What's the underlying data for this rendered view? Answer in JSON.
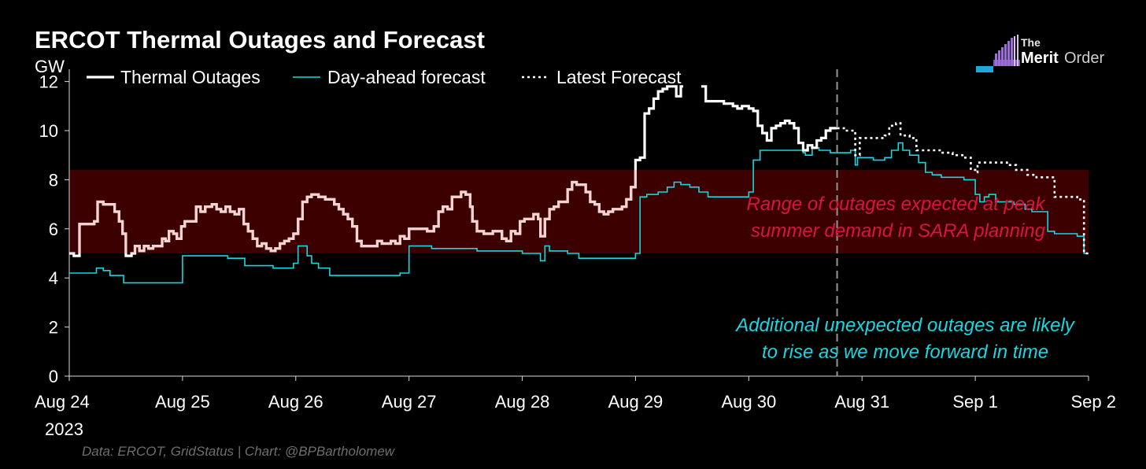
{
  "header": {
    "title": "ERCOT Thermal Outages and Forecast",
    "unit": "GW"
  },
  "logo": {
    "the": "The",
    "merit": "Merit",
    "order": "Order"
  },
  "footer": {
    "source": "Data: ERCOT, GridStatus | Chart: @BPBartholomew"
  },
  "colors": {
    "outages": "#ffffff",
    "band_outages": "#f6d3d3",
    "dayahead": "#19d6df",
    "band": "#3d0000",
    "band_text": "#d7153f",
    "note_text": "#19d6df",
    "vline": "#8a8a8a",
    "axis": "#d9d9d9"
  },
  "chart_data": {
    "type": "line",
    "title": "ERCOT Thermal Outages and Forecast",
    "xlabel": "",
    "ylabel": "GW",
    "xlim": [
      0,
      9
    ],
    "ylim": [
      0,
      12.5
    ],
    "x_ticks": [
      0,
      1,
      2,
      3,
      4,
      5,
      6,
      7,
      8,
      9
    ],
    "x_tick_labels": [
      "Aug 24",
      "Aug 25",
      "Aug 26",
      "Aug 27",
      "Aug 28",
      "Aug 29",
      "Aug 30",
      "Aug 31",
      "Sep 1",
      "Sep 2"
    ],
    "x_year_label": "2023",
    "y_ticks": [
      0,
      2,
      4,
      6,
      8,
      10,
      12
    ],
    "y_tick_labels": [
      "0",
      "2",
      "4",
      "6",
      "8",
      "10",
      "12"
    ],
    "legend": {
      "position": "top-left",
      "entries": [
        "Thermal Outages",
        "Day-ahead forecast",
        "Latest Forecast"
      ]
    },
    "shaded_range": {
      "y_min": 5.0,
      "y_max": 8.4,
      "label_line1": "Range of outages expected at peak",
      "label_line2": "summer demand in SARA planning"
    },
    "vertical_marker": {
      "x": 6.78,
      "style": "dashed"
    },
    "annotation": {
      "line1": "Additional unexpected outages are likely",
      "line2": "to rise as we move forward in time"
    },
    "series": [
      {
        "name": "Thermal Outages",
        "style": "step-solid",
        "points": [
          [
            0.0,
            5.0
          ],
          [
            0.04,
            4.9
          ],
          [
            0.09,
            6.2
          ],
          [
            0.17,
            6.2
          ],
          [
            0.22,
            6.3
          ],
          [
            0.25,
            7.1
          ],
          [
            0.3,
            7.0
          ],
          [
            0.36,
            7.0
          ],
          [
            0.4,
            6.7
          ],
          [
            0.44,
            6.3
          ],
          [
            0.47,
            5.8
          ],
          [
            0.5,
            4.9
          ],
          [
            0.55,
            5.0
          ],
          [
            0.58,
            5.3
          ],
          [
            0.62,
            5.1
          ],
          [
            0.66,
            5.3
          ],
          [
            0.7,
            5.2
          ],
          [
            0.74,
            5.3
          ],
          [
            0.78,
            5.3
          ],
          [
            0.82,
            5.6
          ],
          [
            0.85,
            5.5
          ],
          [
            0.88,
            5.9
          ],
          [
            0.92,
            5.8
          ],
          [
            0.95,
            5.6
          ],
          [
            0.99,
            6.1
          ],
          [
            1.02,
            6.3
          ],
          [
            1.08,
            6.3
          ],
          [
            1.12,
            6.9
          ],
          [
            1.16,
            6.7
          ],
          [
            1.2,
            6.9
          ],
          [
            1.26,
            7.0
          ],
          [
            1.3,
            6.8
          ],
          [
            1.34,
            6.7
          ],
          [
            1.38,
            6.9
          ],
          [
            1.42,
            6.7
          ],
          [
            1.46,
            6.6
          ],
          [
            1.5,
            6.8
          ],
          [
            1.54,
            6.2
          ],
          [
            1.58,
            5.9
          ],
          [
            1.62,
            5.6
          ],
          [
            1.66,
            5.3
          ],
          [
            1.7,
            5.4
          ],
          [
            1.74,
            5.2
          ],
          [
            1.78,
            5.1
          ],
          [
            1.82,
            5.2
          ],
          [
            1.86,
            5.4
          ],
          [
            1.9,
            5.5
          ],
          [
            1.94,
            5.6
          ],
          [
            1.98,
            5.8
          ],
          [
            2.02,
            6.4
          ],
          [
            2.06,
            7.1
          ],
          [
            2.1,
            7.3
          ],
          [
            2.14,
            7.4
          ],
          [
            2.2,
            7.3
          ],
          [
            2.26,
            7.2
          ],
          [
            2.3,
            7.2
          ],
          [
            2.34,
            7.0
          ],
          [
            2.38,
            6.8
          ],
          [
            2.42,
            6.6
          ],
          [
            2.46,
            6.4
          ],
          [
            2.5,
            6.1
          ],
          [
            2.54,
            5.5
          ],
          [
            2.58,
            5.3
          ],
          [
            2.64,
            5.3
          ],
          [
            2.68,
            5.3
          ],
          [
            2.72,
            5.5
          ],
          [
            2.76,
            5.4
          ],
          [
            2.8,
            5.4
          ],
          [
            2.84,
            5.5
          ],
          [
            2.88,
            5.4
          ],
          [
            2.92,
            5.7
          ],
          [
            2.96,
            5.6
          ],
          [
            3.0,
            6.0
          ],
          [
            3.04,
            6.0
          ],
          [
            3.1,
            6.0
          ],
          [
            3.16,
            5.9
          ],
          [
            3.22,
            6.1
          ],
          [
            3.26,
            6.7
          ],
          [
            3.3,
            6.9
          ],
          [
            3.34,
            6.8
          ],
          [
            3.38,
            7.3
          ],
          [
            3.42,
            7.3
          ],
          [
            3.46,
            7.5
          ],
          [
            3.5,
            7.4
          ],
          [
            3.54,
            6.9
          ],
          [
            3.56,
            6.3
          ],
          [
            3.6,
            5.9
          ],
          [
            3.66,
            5.8
          ],
          [
            3.7,
            5.8
          ],
          [
            3.74,
            5.9
          ],
          [
            3.78,
            5.9
          ],
          [
            3.82,
            5.6
          ],
          [
            3.86,
            5.5
          ],
          [
            3.9,
            5.9
          ],
          [
            3.94,
            5.8
          ],
          [
            3.98,
            6.3
          ],
          [
            4.02,
            6.4
          ],
          [
            4.06,
            6.4
          ],
          [
            4.1,
            6.6
          ],
          [
            4.14,
            6.4
          ],
          [
            4.16,
            5.7
          ],
          [
            4.2,
            6.4
          ],
          [
            4.24,
            6.8
          ],
          [
            4.28,
            6.9
          ],
          [
            4.32,
            7.1
          ],
          [
            4.36,
            7.1
          ],
          [
            4.4,
            7.6
          ],
          [
            4.44,
            7.9
          ],
          [
            4.48,
            7.8
          ],
          [
            4.52,
            7.8
          ],
          [
            4.56,
            7.5
          ],
          [
            4.6,
            7.1
          ],
          [
            4.64,
            7.0
          ],
          [
            4.68,
            6.7
          ],
          [
            4.72,
            6.6
          ],
          [
            4.76,
            6.7
          ],
          [
            4.8,
            6.8
          ],
          [
            4.84,
            6.8
          ],
          [
            4.88,
            6.9
          ],
          [
            4.92,
            7.2
          ],
          [
            4.96,
            7.7
          ],
          [
            5.0,
            8.8
          ],
          [
            5.04,
            8.9
          ],
          [
            5.08,
            10.7
          ],
          [
            5.12,
            10.9
          ],
          [
            5.16,
            11.3
          ],
          [
            5.2,
            11.6
          ],
          [
            5.24,
            11.7
          ],
          [
            5.28,
            11.8
          ],
          [
            5.32,
            11.8
          ],
          [
            5.36,
            11.4
          ],
          [
            5.4,
            11.8
          ],
          [
            5.42,
            11.8
          ]
        ]
      },
      {
        "name": "Thermal Outages (cont.)",
        "style": "step-solid",
        "points": [
          [
            5.58,
            11.8
          ],
          [
            5.62,
            11.2
          ],
          [
            5.68,
            11.2
          ],
          [
            5.74,
            11.2
          ],
          [
            5.78,
            11.1
          ],
          [
            5.82,
            11.1
          ],
          [
            5.86,
            11.0
          ],
          [
            5.9,
            10.9
          ],
          [
            5.94,
            11.0
          ],
          [
            6.0,
            10.9
          ],
          [
            6.04,
            10.8
          ],
          [
            6.08,
            10.2
          ],
          [
            6.12,
            9.9
          ],
          [
            6.16,
            9.6
          ],
          [
            6.2,
            10.1
          ],
          [
            6.24,
            10.2
          ],
          [
            6.28,
            10.3
          ],
          [
            6.32,
            10.4
          ],
          [
            6.36,
            10.3
          ],
          [
            6.4,
            10.1
          ],
          [
            6.44,
            9.5
          ],
          [
            6.48,
            9.2
          ],
          [
            6.52,
            9.4
          ],
          [
            6.56,
            9.3
          ],
          [
            6.6,
            9.6
          ],
          [
            6.64,
            9.7
          ],
          [
            6.68,
            10.0
          ],
          [
            6.72,
            10.1
          ],
          [
            6.78,
            10.1
          ]
        ]
      },
      {
        "name": "Day-ahead forecast",
        "style": "step-solid",
        "points": [
          [
            0.0,
            4.2
          ],
          [
            0.2,
            4.2
          ],
          [
            0.24,
            4.4
          ],
          [
            0.3,
            4.3
          ],
          [
            0.36,
            4.1
          ],
          [
            0.4,
            4.1
          ],
          [
            0.48,
            3.8
          ],
          [
            0.6,
            3.8
          ],
          [
            0.8,
            3.8
          ],
          [
            1.0,
            4.9
          ],
          [
            1.2,
            4.9
          ],
          [
            1.4,
            4.8
          ],
          [
            1.55,
            4.5
          ],
          [
            1.8,
            4.4
          ],
          [
            1.98,
            4.6
          ],
          [
            2.02,
            5.3
          ],
          [
            2.06,
            5.3
          ],
          [
            2.1,
            4.9
          ],
          [
            2.14,
            4.6
          ],
          [
            2.2,
            4.4
          ],
          [
            2.3,
            4.1
          ],
          [
            2.4,
            4.1
          ],
          [
            2.6,
            4.1
          ],
          [
            2.7,
            4.1
          ],
          [
            2.8,
            4.1
          ],
          [
            2.88,
            4.1
          ],
          [
            2.92,
            4.2
          ],
          [
            3.0,
            5.3
          ],
          [
            3.1,
            5.3
          ],
          [
            3.2,
            5.2
          ],
          [
            3.4,
            5.2
          ],
          [
            3.6,
            5.1
          ],
          [
            3.8,
            5.1
          ],
          [
            4.0,
            5.0
          ],
          [
            4.14,
            5.0
          ],
          [
            4.16,
            4.7
          ],
          [
            4.2,
            5.3
          ],
          [
            4.24,
            5.1
          ],
          [
            4.4,
            5.0
          ],
          [
            4.5,
            4.8
          ],
          [
            4.6,
            4.8
          ],
          [
            4.7,
            4.8
          ],
          [
            4.8,
            4.8
          ],
          [
            4.96,
            4.8
          ],
          [
            5.0,
            5.0
          ],
          [
            5.04,
            7.3
          ],
          [
            5.1,
            7.4
          ],
          [
            5.2,
            7.5
          ],
          [
            5.28,
            7.7
          ],
          [
            5.34,
            7.9
          ],
          [
            5.4,
            7.8
          ],
          [
            5.48,
            7.7
          ],
          [
            5.56,
            7.5
          ],
          [
            5.64,
            7.3
          ],
          [
            5.8,
            7.3
          ],
          [
            5.94,
            7.3
          ],
          [
            6.0,
            7.5
          ],
          [
            6.04,
            8.8
          ],
          [
            6.1,
            9.2
          ],
          [
            6.2,
            9.2
          ],
          [
            6.4,
            9.2
          ],
          [
            6.48,
            9.1
          ],
          [
            6.5,
            9.0
          ],
          [
            6.56,
            9.3
          ],
          [
            6.62,
            9.2
          ],
          [
            6.68,
            9.2
          ],
          [
            6.72,
            9.1
          ],
          [
            6.78,
            9.1
          ],
          [
            6.86,
            9.1
          ],
          [
            6.9,
            9.2
          ],
          [
            6.94,
            8.6
          ],
          [
            6.96,
            8.9
          ],
          [
            7.1,
            8.8
          ],
          [
            7.2,
            8.9
          ],
          [
            7.26,
            9.2
          ],
          [
            7.32,
            9.5
          ],
          [
            7.36,
            9.2
          ],
          [
            7.42,
            9.0
          ],
          [
            7.5,
            8.7
          ],
          [
            7.56,
            8.3
          ],
          [
            7.62,
            8.2
          ],
          [
            7.7,
            8.1
          ],
          [
            7.8,
            8.1
          ],
          [
            7.9,
            8.0
          ],
          [
            7.96,
            8.0
          ],
          [
            8.0,
            7.4
          ],
          [
            8.04,
            7.1
          ],
          [
            8.08,
            7.3
          ],
          [
            8.12,
            7.4
          ],
          [
            8.18,
            7.1
          ],
          [
            8.26,
            7.1
          ],
          [
            8.34,
            7.0
          ],
          [
            8.44,
            6.8
          ],
          [
            8.5,
            6.7
          ],
          [
            8.6,
            6.7
          ],
          [
            8.64,
            5.9
          ],
          [
            8.7,
            5.8
          ],
          [
            8.8,
            5.8
          ],
          [
            8.9,
            5.7
          ],
          [
            8.96,
            5.0
          ],
          [
            9.0,
            5.0
          ]
        ]
      },
      {
        "name": "Latest Forecast",
        "style": "step-dotted",
        "points": [
          [
            6.78,
            10.1
          ],
          [
            6.84,
            10.0
          ],
          [
            6.94,
            9.0
          ],
          [
            6.98,
            9.7
          ],
          [
            7.1,
            9.7
          ],
          [
            7.2,
            9.8
          ],
          [
            7.24,
            10.2
          ],
          [
            7.3,
            10.3
          ],
          [
            7.34,
            9.8
          ],
          [
            7.42,
            9.7
          ],
          [
            7.48,
            9.2
          ],
          [
            7.6,
            9.2
          ],
          [
            7.7,
            9.1
          ],
          [
            7.8,
            9.0
          ],
          [
            7.9,
            8.9
          ],
          [
            7.96,
            8.4
          ],
          [
            8.0,
            8.3
          ],
          [
            8.02,
            8.7
          ],
          [
            8.1,
            8.7
          ],
          [
            8.2,
            8.7
          ],
          [
            8.28,
            8.6
          ],
          [
            8.36,
            8.4
          ],
          [
            8.46,
            8.2
          ],
          [
            8.54,
            8.1
          ],
          [
            8.64,
            8.1
          ],
          [
            8.7,
            7.3
          ],
          [
            8.8,
            7.3
          ],
          [
            8.9,
            7.2
          ],
          [
            8.96,
            5.0
          ],
          [
            9.0,
            5.0
          ]
        ]
      }
    ]
  }
}
